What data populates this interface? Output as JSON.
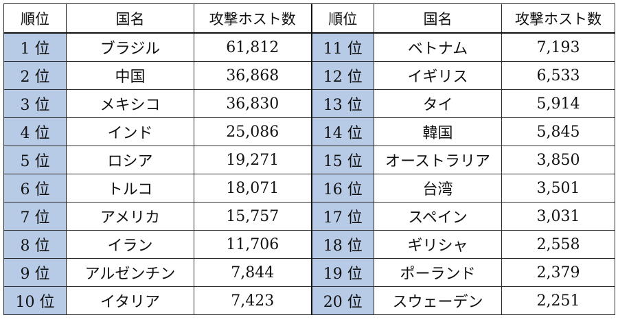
{
  "headers": {
    "rank": "順位",
    "country": "国名",
    "hosts": "攻撃ホスト数"
  },
  "rows": [
    {
      "left": {
        "rank": "1 位",
        "country": "ブラジル",
        "hosts": "61,812"
      },
      "right": {
        "rank": "11 位",
        "country": "ベトナム",
        "hosts": "7,193"
      }
    },
    {
      "left": {
        "rank": "2 位",
        "country": "中国",
        "hosts": "36,868"
      },
      "right": {
        "rank": "12 位",
        "country": "イギリス",
        "hosts": "6,533"
      }
    },
    {
      "left": {
        "rank": "3 位",
        "country": "メキシコ",
        "hosts": "36,830"
      },
      "right": {
        "rank": "13 位",
        "country": "タイ",
        "hosts": "5,914"
      }
    },
    {
      "left": {
        "rank": "4 位",
        "country": "インド",
        "hosts": "25,086"
      },
      "right": {
        "rank": "14 位",
        "country": "韓国",
        "hosts": "5,845"
      }
    },
    {
      "left": {
        "rank": "5 位",
        "country": "ロシア",
        "hosts": "19,271"
      },
      "right": {
        "rank": "15 位",
        "country": "オーストラリア",
        "hosts": "3,850"
      }
    },
    {
      "left": {
        "rank": "6 位",
        "country": "トルコ",
        "hosts": "18,071"
      },
      "right": {
        "rank": "16 位",
        "country": "台湾",
        "hosts": "3,501"
      }
    },
    {
      "left": {
        "rank": "7 位",
        "country": "アメリカ",
        "hosts": "15,757"
      },
      "right": {
        "rank": "17 位",
        "country": "スペイン",
        "hosts": "3,031"
      }
    },
    {
      "left": {
        "rank": "8 位",
        "country": "イラン",
        "hosts": "11,706"
      },
      "right": {
        "rank": "18 位",
        "country": "ギリシャ",
        "hosts": "2,558"
      }
    },
    {
      "left": {
        "rank": "9 位",
        "country": "アルゼンチン",
        "hosts": "7,844"
      },
      "right": {
        "rank": "19 位",
        "country": "ポーランド",
        "hosts": "2,379"
      }
    },
    {
      "left": {
        "rank": "10 位",
        "country": "イタリア",
        "hosts": "7,423"
      },
      "right": {
        "rank": "20 位",
        "country": "スウェーデン",
        "hosts": "2,251"
      }
    }
  ],
  "colors": {
    "rank_cell_background": "#b8cbe6",
    "border": "#111111"
  }
}
